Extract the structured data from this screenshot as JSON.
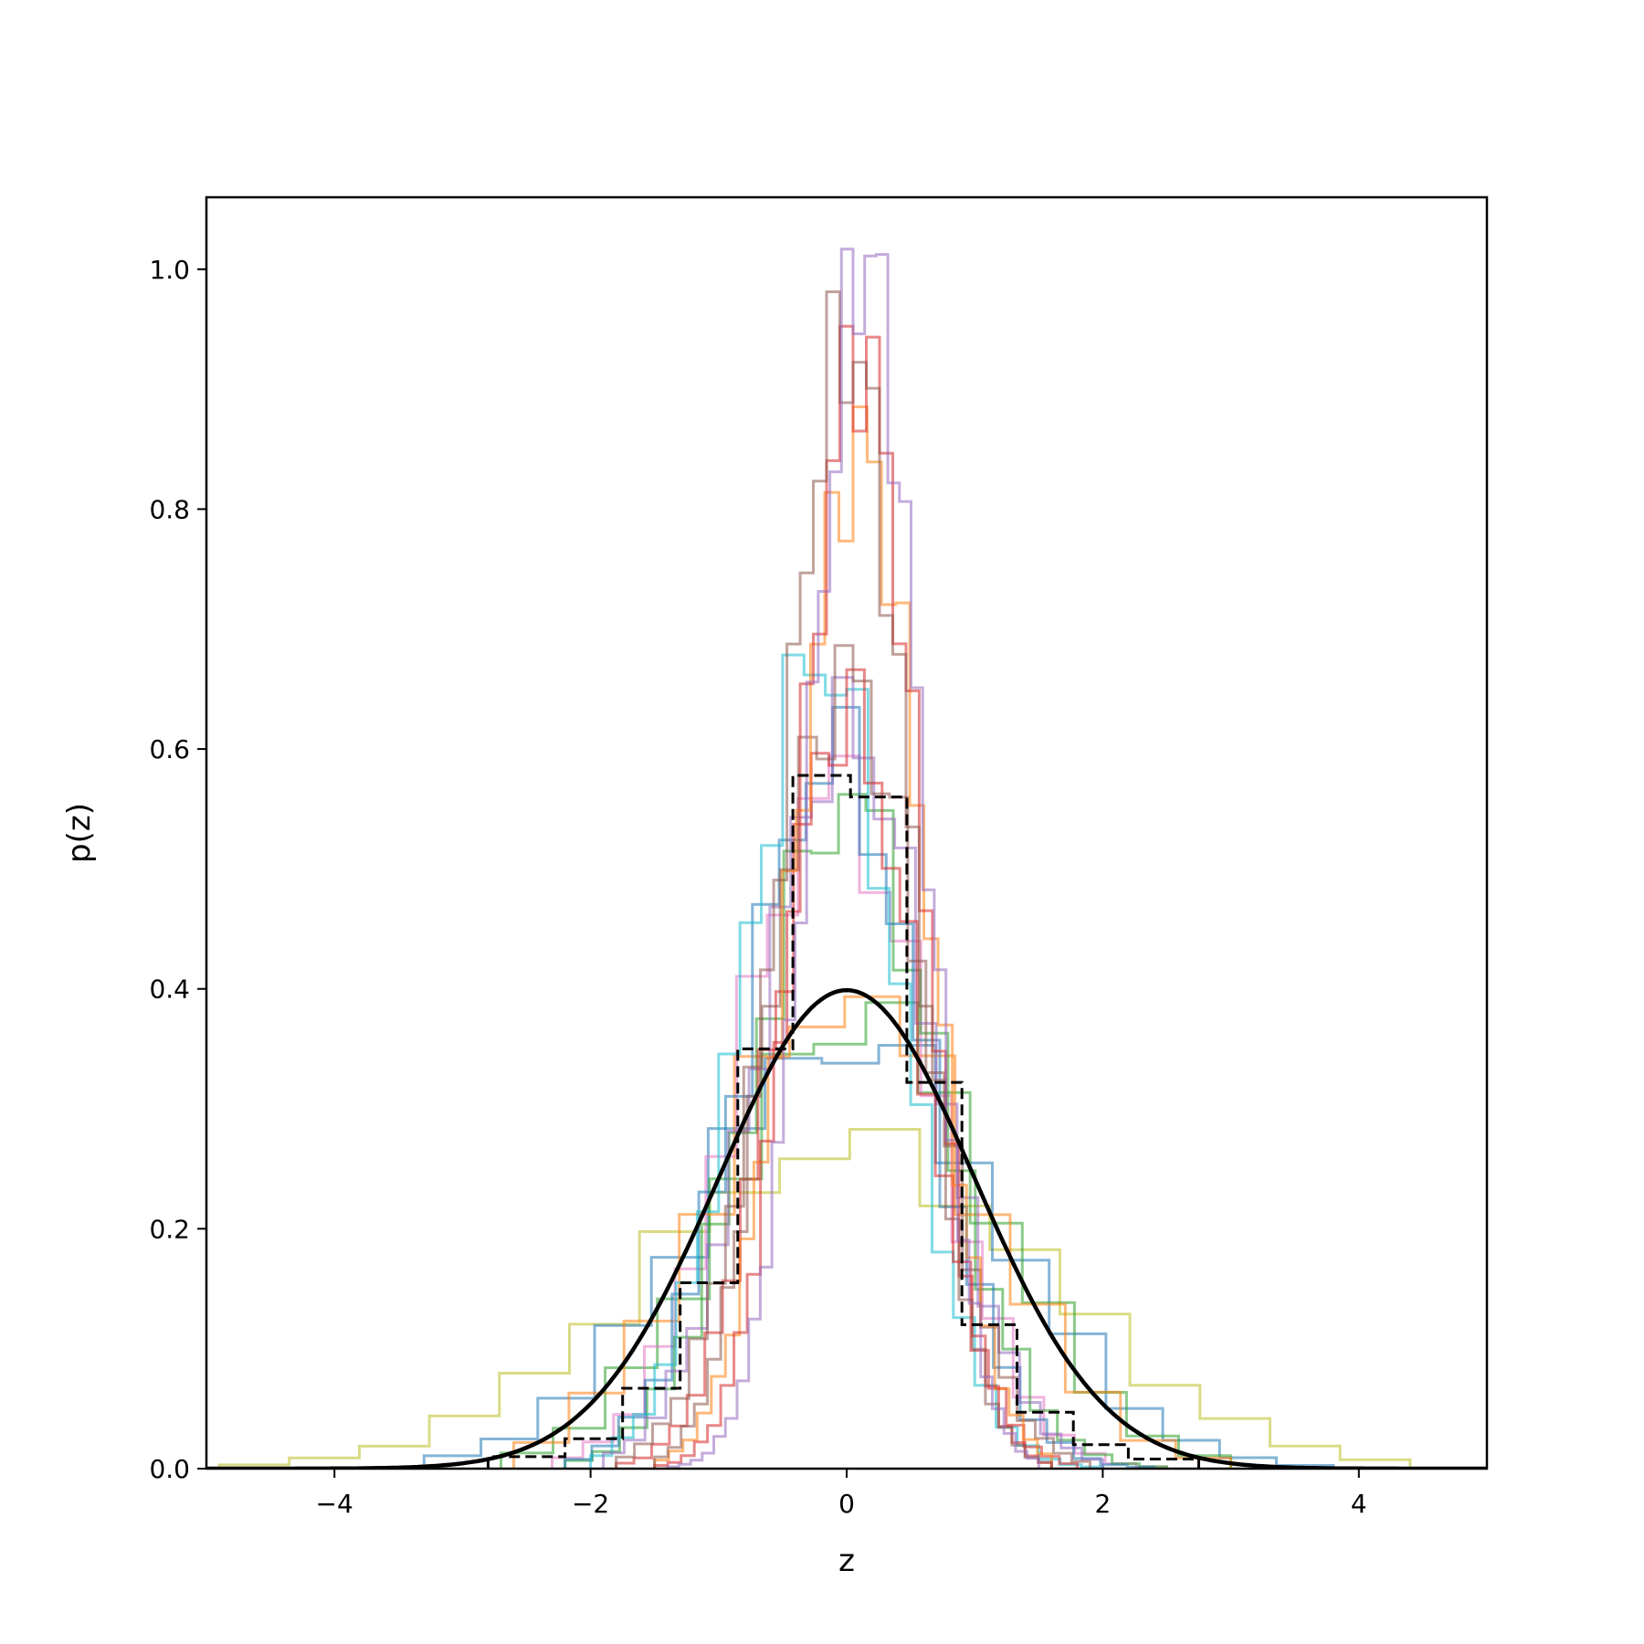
{
  "chart_data": {
    "type": "histogram",
    "title": "",
    "xlabel": "z",
    "ylabel": "p(z)",
    "xlim": [
      -5,
      5
    ],
    "ylim": [
      0,
      1.06
    ],
    "xticks": [
      -4,
      -2,
      0,
      2,
      4
    ],
    "xtick_labels": [
      "−4",
      "−2",
      "0",
      "2",
      "4"
    ],
    "yticks": [
      0.0,
      0.2,
      0.4,
      0.6,
      0.8,
      1.0
    ],
    "ytick_labels": [
      "0.0",
      "0.2",
      "0.4",
      "0.6",
      "0.8",
      "1.0"
    ],
    "grid": false,
    "legend": "none",
    "series": [
      {
        "color": "#bcbd22",
        "mu": 0.0,
        "sigma": 1.55,
        "lo": -4.9,
        "hi": 4.4,
        "bins": 17,
        "peak": 0.27
      },
      {
        "color": "#1f77b4",
        "mu": 0.0,
        "sigma": 1.15,
        "lo": -3.3,
        "hi": 3.8,
        "bins": 16,
        "peak": 0.36
      },
      {
        "color": "#2ca02c",
        "mu": 0.1,
        "sigma": 1.0,
        "lo": -2.7,
        "hi": 3.0,
        "bins": 14,
        "peak": 0.385
      },
      {
        "color": "#ff7f0e",
        "mu": 0.0,
        "sigma": 1.0,
        "lo": -2.6,
        "hi": 3.0,
        "bins": 13,
        "peak": 0.4
      },
      {
        "color": "#e377c2",
        "mu": -0.1,
        "sigma": 0.72,
        "lo": -2.3,
        "hi": 2.5,
        "bins": 20,
        "peak": 0.57
      },
      {
        "color": "#2ca02c",
        "mu": 0.0,
        "sigma": 0.7,
        "lo": -2.2,
        "hi": 2.5,
        "bins": 22,
        "peak": 0.56
      },
      {
        "color": "#1f77b4",
        "mu": -0.1,
        "sigma": 0.68,
        "lo": -2.2,
        "hi": 2.4,
        "bins": 22,
        "peak": 0.6
      },
      {
        "color": "#17becf",
        "mu": -0.2,
        "sigma": 0.6,
        "lo": -2.0,
        "hi": 2.0,
        "bins": 24,
        "peak": 0.68
      },
      {
        "color": "#9467bd",
        "mu": 0.0,
        "sigma": 0.65,
        "lo": -1.9,
        "hi": 2.0,
        "bins": 24,
        "peak": 0.62
      },
      {
        "color": "#d62728",
        "mu": 0.0,
        "sigma": 0.55,
        "lo": -1.8,
        "hi": 1.8,
        "bins": 26,
        "peak": 0.63
      },
      {
        "color": "#8c564b",
        "mu": 0.0,
        "sigma": 0.6,
        "lo": -1.8,
        "hi": 1.9,
        "bins": 26,
        "peak": 0.66
      },
      {
        "color": "#ff7f0e",
        "mu": 0.1,
        "sigma": 0.5,
        "lo": -1.5,
        "hi": 1.6,
        "bins": 28,
        "peak": 0.85
      },
      {
        "color": "#d62728",
        "mu": 0.1,
        "sigma": 0.45,
        "lo": -1.5,
        "hi": 1.6,
        "bins": 30,
        "peak": 0.93
      },
      {
        "color": "#8c564b",
        "mu": 0.0,
        "sigma": 0.48,
        "lo": -1.5,
        "hi": 1.6,
        "bins": 30,
        "peak": 0.94
      },
      {
        "color": "#9467bd",
        "mu": 0.15,
        "sigma": 0.42,
        "lo": -1.4,
        "hi": 1.5,
        "bins": 32,
        "peak": 1.01
      }
    ],
    "reference_histogram": {
      "color": "#000000",
      "style": "dashed",
      "edges": [
        -2.8,
        -2.2,
        -1.75,
        -1.3,
        -0.85,
        -0.42,
        0.03,
        0.47,
        0.9,
        1.33,
        1.77,
        2.2,
        2.75
      ],
      "values": [
        0.01,
        0.025,
        0.067,
        0.155,
        0.35,
        0.578,
        0.56,
        0.322,
        0.12,
        0.047,
        0.02,
        0.008
      ]
    },
    "reference_curve": {
      "color": "#000000",
      "style": "solid",
      "function": "standard normal pdf",
      "mu": 0,
      "sigma": 1
    }
  }
}
